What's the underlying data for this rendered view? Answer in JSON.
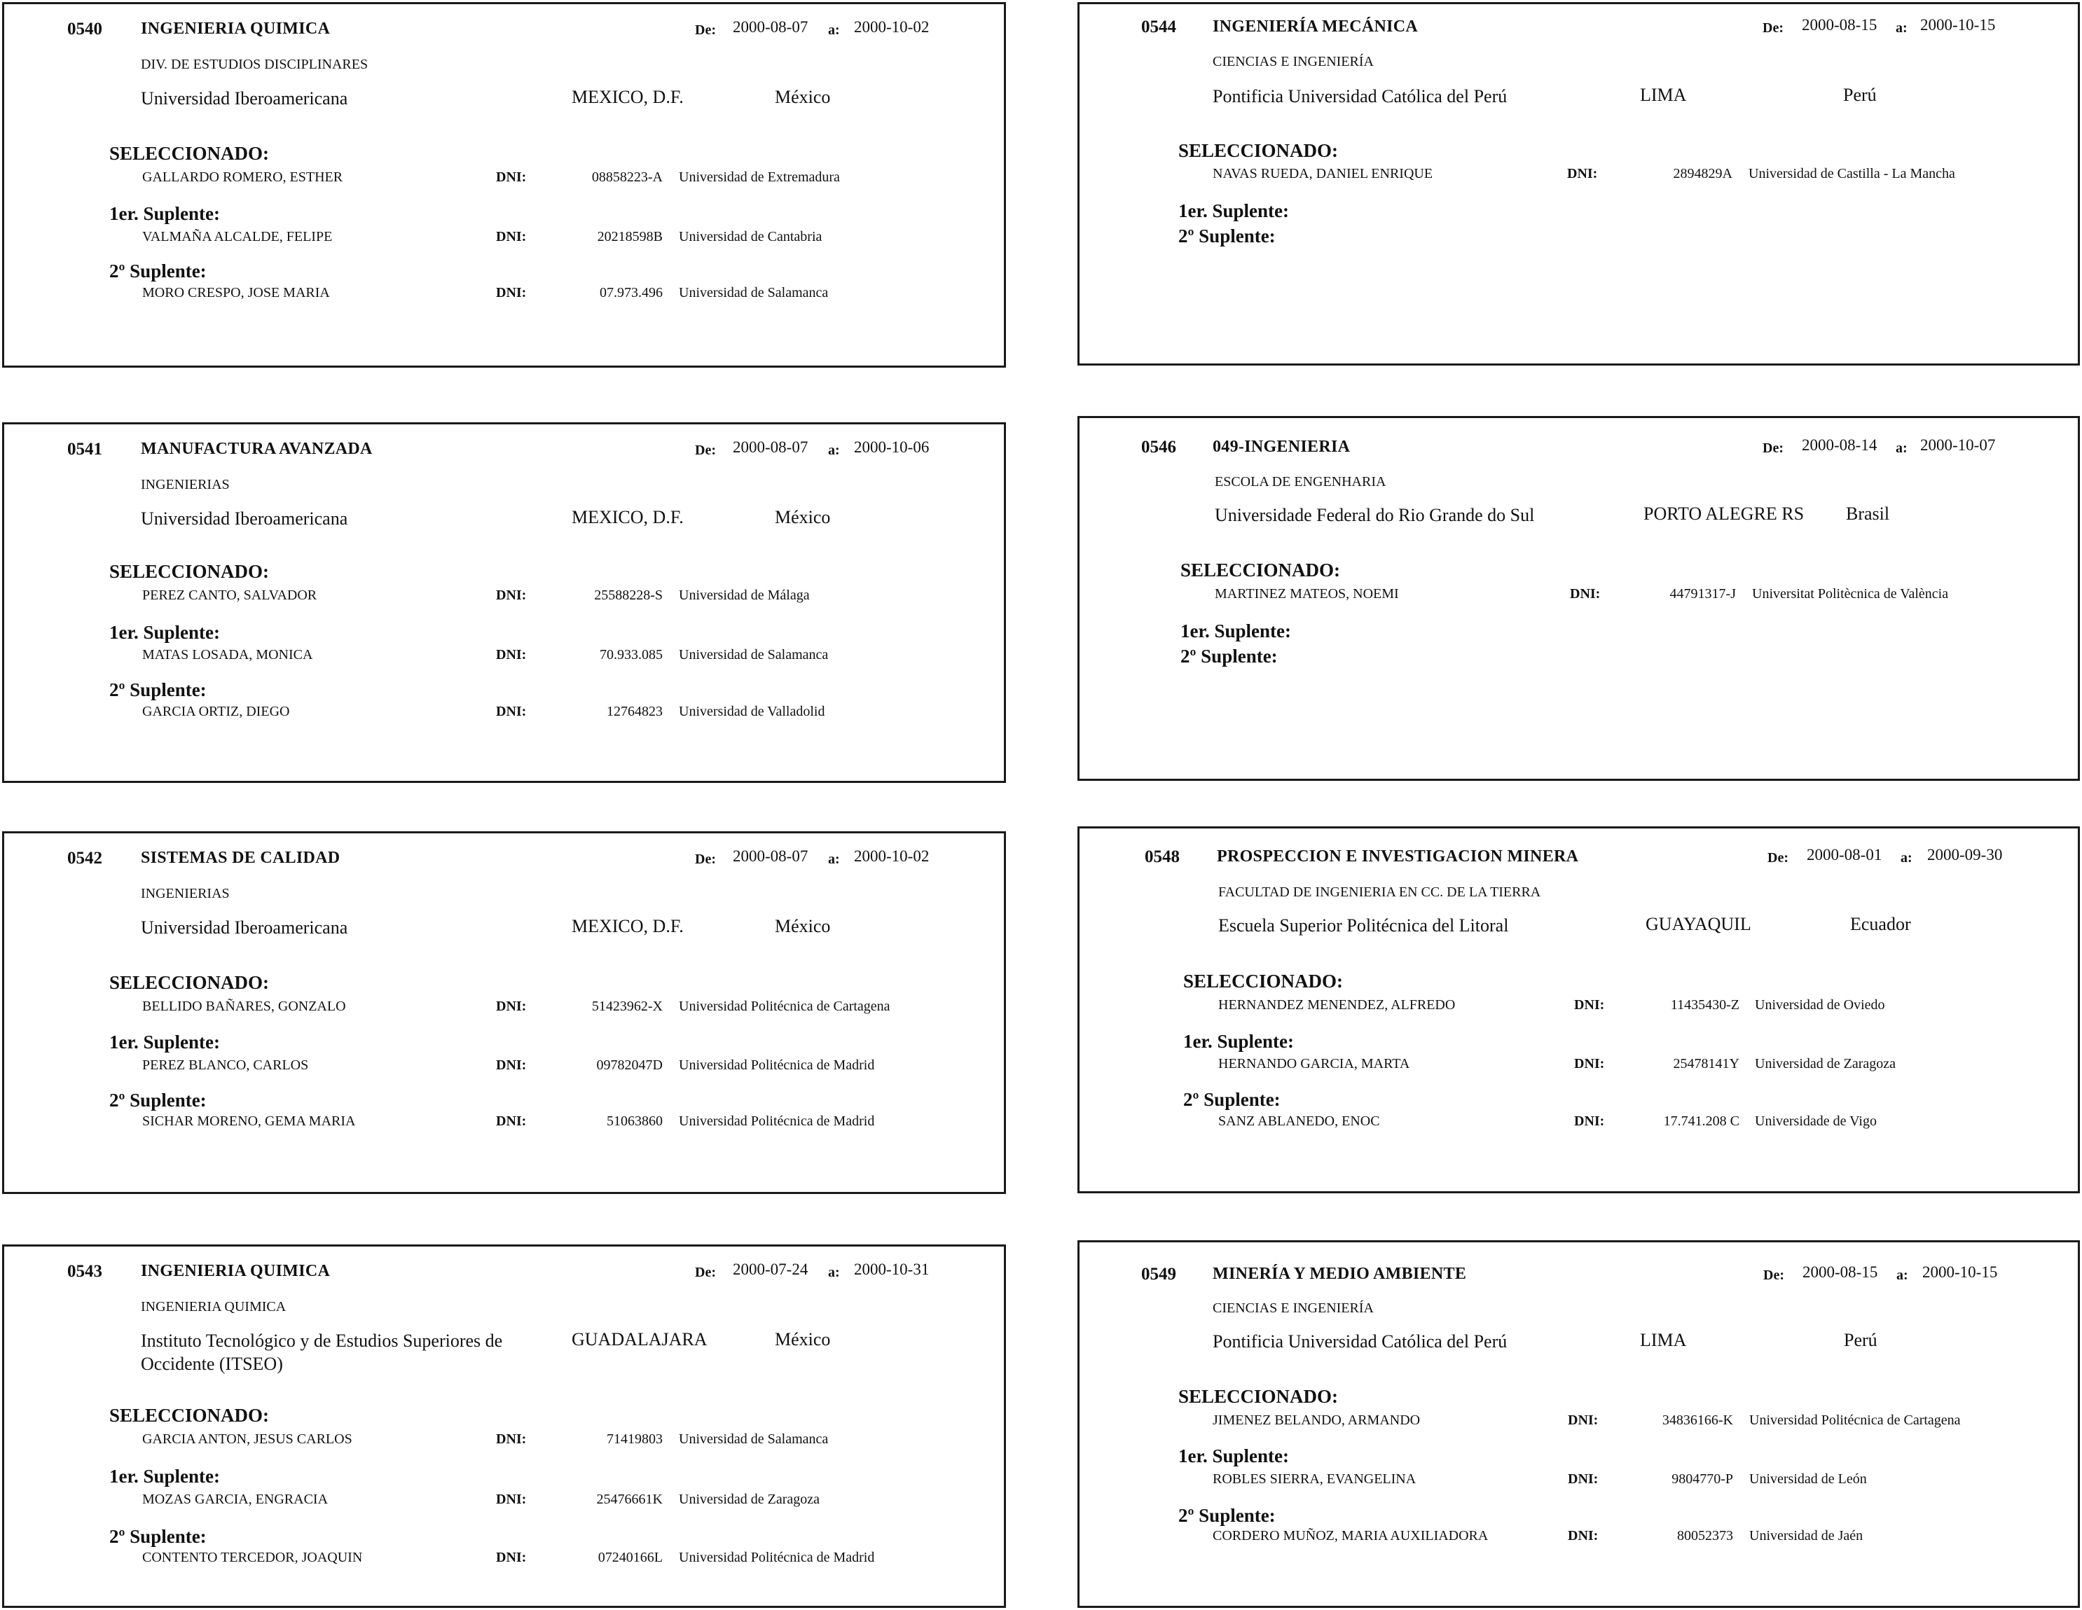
{
  "dni_label": "DNI:",
  "de_label": "De:",
  "a_label": "a:",
  "sel_label": "SELECCIONADO:",
  "s1_label": "1er. Suplente:",
  "s2_label": "2º Suplente:",
  "cards": [
    {
      "code": "0540",
      "title": "INGENIERIA QUIMICA",
      "from": "2000-08-07",
      "to": "2000-10-02",
      "dept": "DIV. DE ESTUDIOS DISCIPLINARES",
      "inst": "Universidad Iberoamericana",
      "city": "MEXICO, D.F.",
      "country": "México",
      "sel": {
        "name": "GALLARDO ROMERO, ESTHER",
        "dni": "08858223-A",
        "univ": "Universidad de Extremadura"
      },
      "s1": {
        "name": "VALMAÑA ALCALDE, FELIPE",
        "dni": "20218598B",
        "univ": "Universidad de Cantabria"
      },
      "s2": {
        "name": "MORO CRESPO, JOSE MARIA",
        "dni": "07.973.496",
        "univ": "Universidad de Salamanca"
      }
    },
    {
      "code": "0541",
      "title": "MANUFACTURA AVANZADA",
      "from": "2000-08-07",
      "to": "2000-10-06",
      "dept": "INGENIERIAS",
      "inst": "Universidad Iberoamericana",
      "city": "MEXICO, D.F.",
      "country": "México",
      "sel": {
        "name": "PEREZ CANTO, SALVADOR",
        "dni": "25588228-S",
        "univ": "Universidad de Málaga"
      },
      "s1": {
        "name": "MATAS LOSADA, MONICA",
        "dni": "70.933.085",
        "univ": "Universidad de Salamanca"
      },
      "s2": {
        "name": "GARCIA ORTIZ, DIEGO",
        "dni": "12764823",
        "univ": "Universidad de Valladolid"
      }
    },
    {
      "code": "0542",
      "title": "SISTEMAS DE CALIDAD",
      "from": "2000-08-07",
      "to": "2000-10-02",
      "dept": "INGENIERIAS",
      "inst": "Universidad Iberoamericana",
      "city": "MEXICO, D.F.",
      "country": "México",
      "sel": {
        "name": "BELLIDO BAÑARES, GONZALO",
        "dni": "51423962-X",
        "univ": "Universidad Politécnica de Cartagena"
      },
      "s1": {
        "name": "PEREZ BLANCO, CARLOS",
        "dni": "09782047D",
        "univ": "Universidad Politécnica de Madrid"
      },
      "s2": {
        "name": "SICHAR MORENO, GEMA MARIA",
        "dni": "51063860",
        "univ": "Universidad Politécnica de Madrid"
      }
    },
    {
      "code": "0543",
      "title": "INGENIERIA QUIMICA",
      "from": "2000-07-24",
      "to": "2000-10-31",
      "dept": "INGENIERIA QUIMICA",
      "inst": "Instituto Tecnológico y de Estudios Superiores de",
      "inst2": "Occidente (ITSEO)",
      "city": "GUADALAJARA",
      "country": "México",
      "sel": {
        "name": "GARCIA ANTON, JESUS CARLOS",
        "dni": "71419803",
        "univ": "Universidad de Salamanca"
      },
      "s1": {
        "name": "MOZAS GARCIA, ENGRACIA",
        "dni": "25476661K",
        "univ": "Universidad de Zaragoza"
      },
      "s2": {
        "name": "CONTENTO TERCEDOR, JOAQUIN",
        "dni": "07240166L",
        "univ": "Universidad Politécnica de Madrid"
      }
    },
    {
      "code": "0544",
      "title": "INGENIERÍA MECÁNICA",
      "from": "2000-08-15",
      "to": "2000-10-15",
      "dept": "CIENCIAS E INGENIERÍA",
      "inst": "Pontificia Universidad Católica del Perú",
      "city": "LIMA",
      "country": "Perú",
      "sel": {
        "name": "NAVAS RUEDA, DANIEL ENRIQUE",
        "dni": "2894829A",
        "univ": "Universidad de Castilla - La Mancha"
      }
    },
    {
      "code": "0546",
      "title": "049-INGENIERIA",
      "from": "2000-08-14",
      "to": "2000-10-07",
      "dept": "ESCOLA DE ENGENHARIA",
      "inst": "Universidade Federal do Rio Grande do Sul",
      "city": "PORTO ALEGRE RS",
      "country": "Brasil",
      "sel": {
        "name": "MARTINEZ MATEOS, NOEMI",
        "dni": "44791317-J",
        "univ": "Universitat Politècnica de València"
      }
    },
    {
      "code": "0548",
      "title": "PROSPECCION E INVESTIGACION MINERA",
      "from": "2000-08-01",
      "to": "2000-09-30",
      "dept": "FACULTAD DE INGENIERIA EN CC. DE LA TIERRA",
      "inst": "Escuela Superior Politécnica del Litoral",
      "city": "GUAYAQUIL",
      "country": "Ecuador",
      "sel": {
        "name": "HERNANDEZ MENENDEZ, ALFREDO",
        "dni": "11435430-Z",
        "univ": "Universidad de Oviedo"
      },
      "s1": {
        "name": "HERNANDO GARCIA, MARTA",
        "dni": "25478141Y",
        "univ": "Universidad de Zaragoza"
      },
      "s2": {
        "name": "SANZ ABLANEDO, ENOC",
        "dni": "17.741.208 C",
        "univ": "Universidade de Vigo"
      }
    },
    {
      "code": "0549",
      "title": "MINERÍA Y MEDIO AMBIENTE",
      "from": "2000-08-15",
      "to": "2000-10-15",
      "dept": "CIENCIAS E INGENIERÍA",
      "inst": "Pontificia Universidad Católica del Perú",
      "city": "LIMA",
      "country": "Perú",
      "sel": {
        "name": "JIMENEZ BELANDO, ARMANDO",
        "dni": "34836166-K",
        "univ": "Universidad Politécnica de Cartagena"
      },
      "s1": {
        "name": "ROBLES SIERRA, EVANGELINA",
        "dni": "9804770-P",
        "univ": "Universidad de León"
      },
      "s2": {
        "name": "CORDERO MUÑOZ, MARIA AUXILIADORA",
        "dni": "80052373",
        "univ": "Universidad de Jaén"
      }
    }
  ]
}
